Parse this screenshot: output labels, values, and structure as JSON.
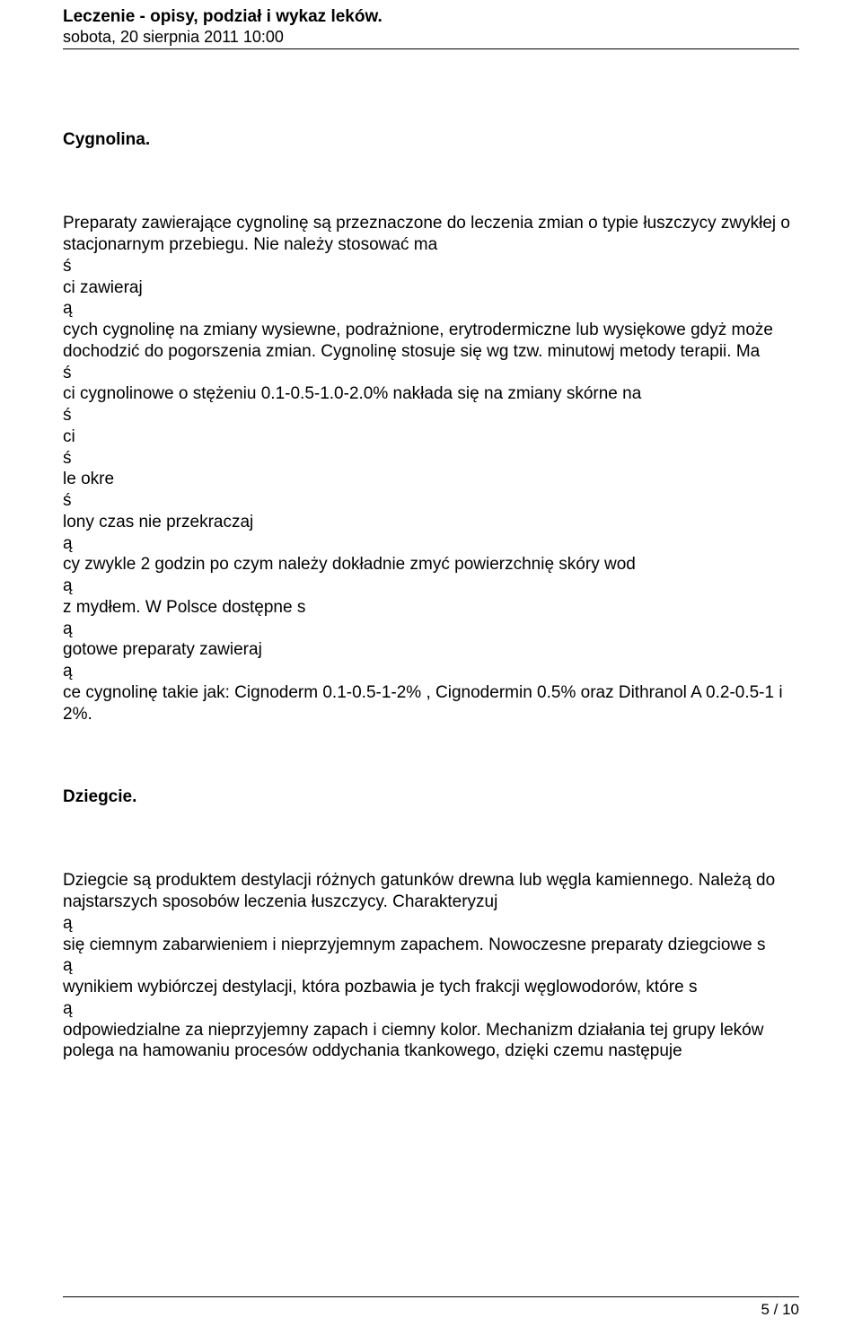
{
  "header": {
    "title": "Leczenie - opisy, podział i wykaz leków.",
    "date": "sobota, 20 sierpnia 2011 10:00"
  },
  "section1": {
    "heading": "Cygnolina.",
    "lines": [
      "Preparaty  zawierające cygnolinę są przeznaczone do leczenia zmian o typie łuszczycy zwykłej o stacjonarnym przebiegu. Nie należy stosować ma",
      "ś",
      "ci zawieraj",
      "ą",
      "cych  cygnolinę na zmiany wysiewne, podrażnione, erytrodermiczne lub wysiękowe gdyż  może dochodzić do pogorszenia zmian. Cygnolinę stosuje się wg tzw. minutowj  metody terapii. Ma",
      "ś",
      "ci cygnolinowe o stężeniu 0.1-0.5-1.0-2.0% nakłada się na  zmiany skórne na",
      "ś",
      "ci",
      "ś",
      "le okre",
      "ś",
      "lony czas nie przekraczaj",
      "ą",
      "cy zwykle 2 godzin po  czym należy dokładnie zmyć powierzchnię skóry wod",
      "ą",
      "z mydłem. W Polsce dostępne  s",
      "ą",
      "gotowe preparaty zawieraj",
      "ą",
      "ce cygnolinę takie jak: Cignoderm 0.1-0.5-1-2% ,  Cignodermin 0.5% oraz Dithranol A 0.2-0.5-1 i 2%."
    ]
  },
  "section2": {
    "heading": "Dziegcie.",
    "lines": [
      "Dziegcie są produktem destylacji różnych gatunków drewna lub węgla kamiennego. Należą do najstarszych sposobów leczenia łuszczycy. Charakteryzuj",
      "ą",
      "się ciemnym  zabarwieniem i nieprzyjemnym zapachem. Nowoczesne preparaty dziegciowe s",
      "ą",
      "wynikiem wybiórczej destylacji, która pozbawia je tych frakcji węglowodorów,  które s",
      "ą",
      "odpowiedzialne za nieprzyjemny zapach i ciemny kolor. Mechanizm  działania tej grupy leków polega na hamowaniu procesów oddychania tkankowego,  dzięki czemu następuje"
    ]
  },
  "footer": {
    "pageNumber": "5 / 10"
  }
}
